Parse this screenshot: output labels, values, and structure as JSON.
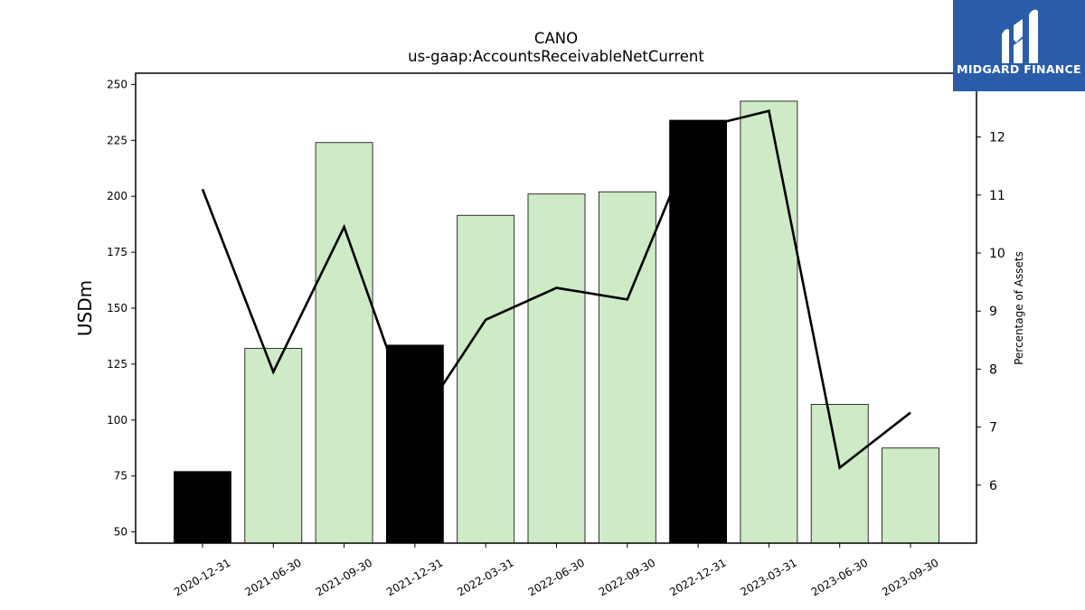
{
  "chart_data": {
    "type": "bar",
    "title": "CANO",
    "subtitle": "us-gaap:AccountsReceivableNetCurrent",
    "ylabel": "USDm",
    "ylabel_right": "Percentage of Assets",
    "categories": [
      "2020-12-31",
      "2021-06-30",
      "2021-09-30",
      "2021-12-31",
      "2022-03-31",
      "2022-06-30",
      "2022-09-30",
      "2022-12-31",
      "2023-03-31",
      "2023-06-30",
      "2023-09-30"
    ],
    "series": [
      {
        "type": "bar",
        "values": [
          77,
          132,
          224,
          133.5,
          191.5,
          201,
          202,
          234,
          242.5,
          107,
          87.5
        ],
        "highlight": [
          true,
          false,
          false,
          true,
          false,
          false,
          false,
          true,
          false,
          false,
          false
        ],
        "color": "#cfeac7",
        "highlight_color": "#000000"
      },
      {
        "type": "line",
        "axis": "right",
        "values": [
          11.1,
          7.95,
          10.45,
          7.0,
          8.85,
          9.4,
          9.2,
          12.15,
          12.45,
          6.3,
          7.25
        ],
        "color": "#000000"
      }
    ],
    "ylim": [
      45,
      255
    ],
    "yticks": [
      50,
      75,
      100,
      125,
      150,
      175,
      200,
      225,
      250
    ],
    "ylim_right": [
      5.0,
      13.1
    ],
    "yticks_right": [
      6,
      7,
      8,
      9,
      10,
      11,
      12
    ],
    "grid": false,
    "legend": "none"
  },
  "logo": {
    "text": "MIDGARD FINANCE",
    "background": "#2a5caa"
  }
}
